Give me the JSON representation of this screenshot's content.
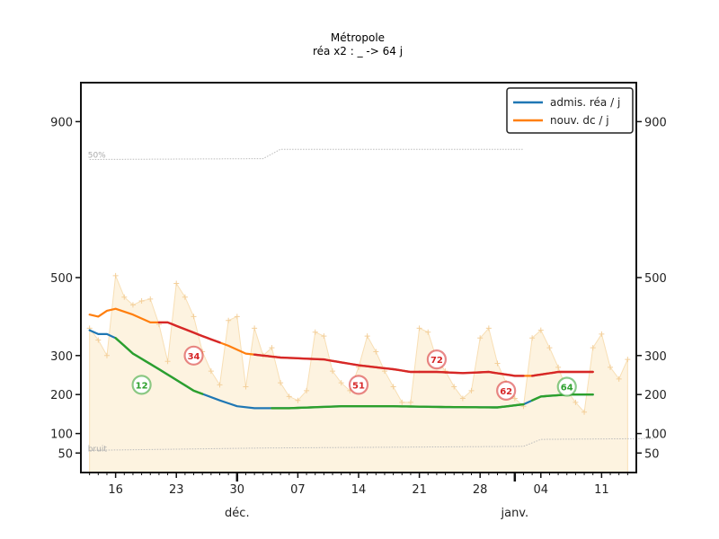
{
  "chart_data": {
    "type": "line",
    "title": "Métropole",
    "subtitle": "réa x2 : _ -> 64 j",
    "ylim": [
      0,
      1000
    ],
    "y_ticks": [
      50,
      100,
      200,
      300,
      500,
      900
    ],
    "x_tick_labels": [
      "16",
      "23",
      "30",
      "07",
      "14",
      "21",
      "28",
      "04",
      "11"
    ],
    "month_labels": [
      {
        "label": "déc.",
        "day": 30
      },
      {
        "label": "janv.",
        "day": 62
      }
    ],
    "threshold_labels": {
      "high": "50%",
      "low": "bruit"
    },
    "thresholds": {
      "high": [
        [
          13,
          803
        ],
        [
          33,
          805
        ],
        [
          35,
          829
        ],
        [
          63,
          829
        ]
      ],
      "low": [
        [
          13,
          57
        ],
        [
          33,
          63
        ],
        [
          63,
          67
        ],
        [
          65,
          85
        ],
        [
          78,
          87
        ]
      ]
    },
    "series": [
      {
        "name": "admis. réa / j",
        "color": "#1f77b4",
        "points": [
          [
            13,
            365
          ],
          [
            14,
            355
          ],
          [
            15,
            355
          ],
          [
            16,
            345
          ],
          [
            18,
            305
          ],
          [
            21,
            265
          ],
          [
            25,
            210
          ],
          [
            28,
            185
          ],
          [
            30,
            170
          ],
          [
            32,
            165
          ],
          [
            36,
            165
          ],
          [
            42,
            170
          ],
          [
            48,
            170
          ],
          [
            54,
            168
          ],
          [
            60,
            167
          ],
          [
            63,
            175
          ],
          [
            65,
            195
          ],
          [
            68,
            200
          ],
          [
            71,
            200
          ]
        ]
      },
      {
        "name": "nouv. dc / j",
        "color": "#ff7f0e",
        "points": [
          [
            13,
            405
          ],
          [
            14,
            400
          ],
          [
            15,
            415
          ],
          [
            16,
            420
          ],
          [
            18,
            405
          ],
          [
            20,
            385
          ],
          [
            22,
            385
          ],
          [
            26,
            350
          ],
          [
            29,
            325
          ],
          [
            31,
            305
          ],
          [
            35,
            295
          ],
          [
            40,
            290
          ],
          [
            44,
            275
          ],
          [
            48,
            265
          ],
          [
            50,
            258
          ],
          [
            53,
            258
          ],
          [
            56,
            255
          ],
          [
            59,
            258
          ],
          [
            62,
            248
          ],
          [
            64,
            248
          ],
          [
            67,
            258
          ],
          [
            71,
            258
          ]
        ]
      }
    ],
    "highlights": [
      {
        "color": "#2ca02c",
        "from": 16,
        "to": 26
      },
      {
        "color": "#d62728",
        "from": 21,
        "to": 28
      },
      {
        "color": "#2ca02c",
        "from": 34,
        "to": 63
      },
      {
        "color": "#d62728",
        "from": 32,
        "to": 51
      },
      {
        "color": "#d62728",
        "from": 51,
        "to": 63
      },
      {
        "color": "#2ca02c",
        "from": 64,
        "to": 71
      },
      {
        "color": "#d62728",
        "from": 64,
        "to": 71
      }
    ],
    "bubbles": [
      {
        "label": "34",
        "day": 25,
        "value": 300,
        "color": "#d62728"
      },
      {
        "label": "12",
        "day": 19,
        "value": 225,
        "color": "#2ca02c"
      },
      {
        "label": "51",
        "day": 44,
        "value": 225,
        "color": "#d62728"
      },
      {
        "label": "72",
        "day": 53,
        "value": 290,
        "color": "#d62728"
      },
      {
        "label": "62",
        "day": 61,
        "value": 210,
        "color": "#d62728"
      },
      {
        "label": "64",
        "day": 68,
        "value": 220,
        "color": "#2ca02c"
      }
    ],
    "noisy_values": [
      [
        13,
        370
      ],
      [
        14,
        340
      ],
      [
        15,
        300
      ],
      [
        16,
        505
      ],
      [
        17,
        450
      ],
      [
        18,
        430
      ],
      [
        19,
        440
      ],
      [
        20,
        445
      ],
      [
        21,
        380
      ],
      [
        22,
        285
      ],
      [
        23,
        485
      ],
      [
        24,
        450
      ],
      [
        25,
        400
      ],
      [
        26,
        310
      ],
      [
        27,
        260
      ],
      [
        28,
        225
      ],
      [
        29,
        390
      ],
      [
        30,
        400
      ],
      [
        31,
        220
      ],
      [
        32,
        370
      ],
      [
        33,
        300
      ],
      [
        34,
        320
      ],
      [
        35,
        230
      ],
      [
        36,
        195
      ],
      [
        37,
        185
      ],
      [
        38,
        210
      ],
      [
        39,
        360
      ],
      [
        40,
        350
      ],
      [
        41,
        260
      ],
      [
        42,
        230
      ],
      [
        43,
        210
      ],
      [
        44,
        270
      ],
      [
        45,
        350
      ],
      [
        46,
        310
      ],
      [
        47,
        260
      ],
      [
        48,
        220
      ],
      [
        49,
        180
      ],
      [
        50,
        180
      ],
      [
        51,
        370
      ],
      [
        52,
        360
      ],
      [
        53,
        290
      ],
      [
        54,
        260
      ],
      [
        55,
        220
      ],
      [
        56,
        190
      ],
      [
        57,
        210
      ],
      [
        58,
        345
      ],
      [
        59,
        370
      ],
      [
        60,
        280
      ],
      [
        61,
        230
      ],
      [
        62,
        190
      ],
      [
        63,
        170
      ],
      [
        64,
        345
      ],
      [
        65,
        365
      ],
      [
        66,
        320
      ],
      [
        67,
        270
      ],
      [
        68,
        210
      ],
      [
        69,
        180
      ],
      [
        70,
        155
      ],
      [
        71,
        320
      ],
      [
        72,
        355
      ],
      [
        73,
        270
      ],
      [
        74,
        240
      ],
      [
        75,
        290
      ]
    ],
    "legend_position": "top-right",
    "grid": false
  }
}
